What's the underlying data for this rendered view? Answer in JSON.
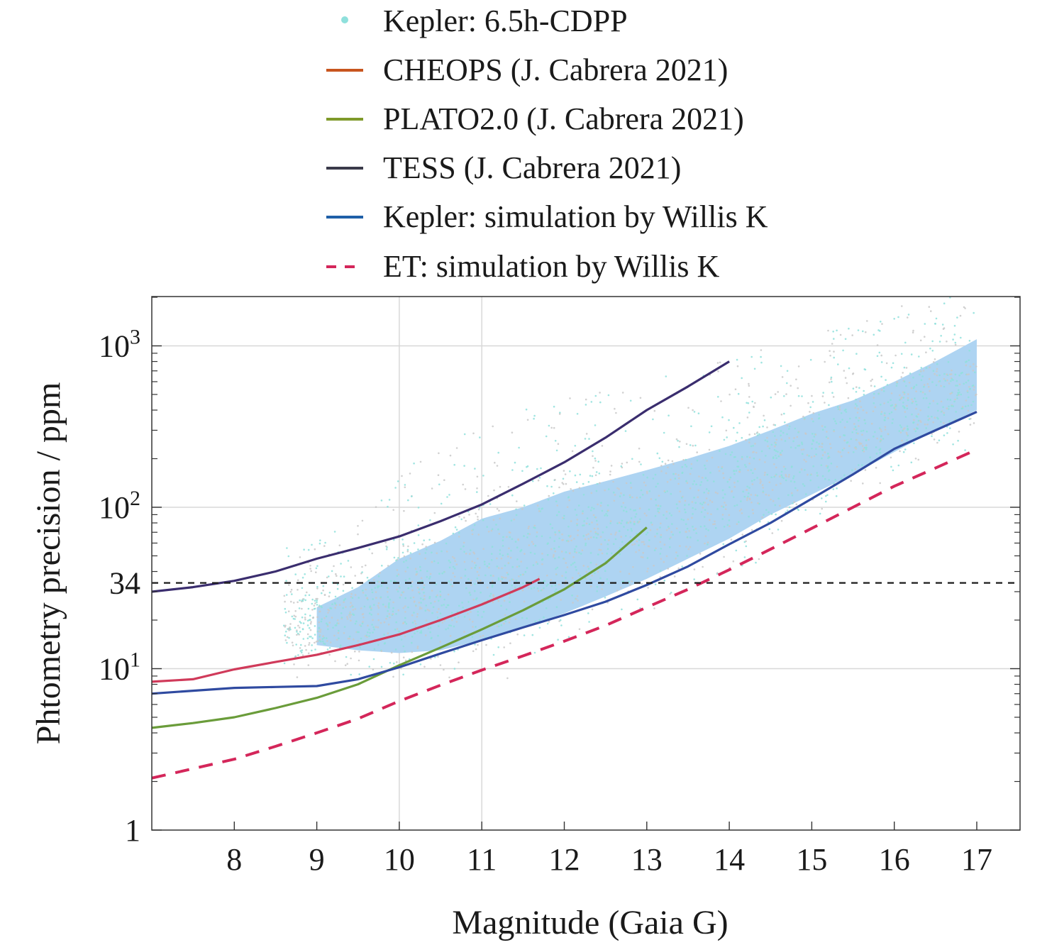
{
  "chart_data": {
    "type": "line",
    "title": "",
    "xlabel": "Magnitude (Gaia G)",
    "ylabel": "Phtometry precision / ppm",
    "xlim": [
      7,
      17.5
    ],
    "ylim": [
      1,
      2000
    ],
    "yscale": "log",
    "grid": true,
    "legend_position": "top",
    "x_ticks": [
      "8",
      "9",
      "10",
      "11",
      "12",
      "13",
      "14",
      "15",
      "16",
      "17"
    ],
    "y_ticks": [
      {
        "value": 1,
        "label": "1",
        "exp": ""
      },
      {
        "value": 10,
        "label": "10",
        "exp": "1"
      },
      {
        "value": 34,
        "label": "34",
        "exp": ""
      },
      {
        "value": 100,
        "label": "10",
        "exp": "2"
      },
      {
        "value": 1000,
        "label": "10",
        "exp": "3"
      }
    ],
    "reference_line": {
      "y": 34,
      "style": "dashed",
      "color": "#1a1a1a"
    },
    "scatter": {
      "name": "Kepler: 6.5h-CDPP",
      "color": "#8fe0dc",
      "band_color": "#aed4f2",
      "band": {
        "x": [
          9.0,
          9.5,
          10.0,
          10.5,
          11.0,
          11.5,
          12.0,
          12.5,
          13.0,
          13.5,
          14.0,
          14.5,
          15.0,
          15.5,
          16.0,
          16.5,
          17.0
        ],
        "lower": [
          14,
          13,
          12.5,
          13,
          15,
          18,
          22,
          28,
          36,
          48,
          64,
          90,
          120,
          160,
          220,
          300,
          400
        ],
        "upper": [
          24,
          32,
          48,
          62,
          85,
          100,
          125,
          145,
          170,
          200,
          240,
          300,
          380,
          460,
          600,
          800,
          1100
        ]
      }
    },
    "series": [
      {
        "name": "CHEOPS (J. Cabrera 2021)",
        "legend_color": "#c8551f",
        "color": "#d03a5a",
        "dash": false,
        "x": [
          7.0,
          7.5,
          8.0,
          8.5,
          9.0,
          9.5,
          10.0,
          10.5,
          11.0,
          11.5,
          11.7
        ],
        "y": [
          8.3,
          8.6,
          9.9,
          11.0,
          12.2,
          14.0,
          16.3,
          20.0,
          25.0,
          32.0,
          36.0
        ]
      },
      {
        "name": "PLATO2.0 (J. Cabrera 2021)",
        "legend_color": "#7f9a2a",
        "color": "#6a9c3a",
        "dash": false,
        "x": [
          7.0,
          7.5,
          8.0,
          8.5,
          9.0,
          9.5,
          10.0,
          10.5,
          11.0,
          11.5,
          12.0,
          12.5,
          13.0
        ],
        "y": [
          4.3,
          4.6,
          5.0,
          5.7,
          6.6,
          8.0,
          10.5,
          13.5,
          17.5,
          23.0,
          31.0,
          45.0,
          75.0
        ]
      },
      {
        "name": "TESS (J. Cabrera 2021)",
        "legend_color": "#3a3a4a",
        "color": "#3a2d6e",
        "dash": false,
        "x": [
          7.0,
          7.5,
          8.0,
          8.5,
          9.0,
          9.5,
          10.0,
          10.5,
          11.0,
          11.5,
          12.0,
          12.5,
          13.0,
          13.5,
          14.0
        ],
        "y": [
          30.0,
          32.0,
          35.0,
          40.0,
          48.0,
          56.0,
          66.0,
          82.0,
          104.0,
          140.0,
          190.0,
          270.0,
          400.0,
          560.0,
          800.0
        ]
      },
      {
        "name": "Kepler: simulation by Willis K",
        "legend_color": "#1f5fa8",
        "color": "#2f4aa0",
        "dash": false,
        "x": [
          7.0,
          7.5,
          8.0,
          8.5,
          9.0,
          9.5,
          10.0,
          10.5,
          11.0,
          11.5,
          12.0,
          12.5,
          13.0,
          13.5,
          14.0,
          14.5,
          15.0,
          15.5,
          16.0,
          16.5,
          17.0
        ],
        "y": [
          7.0,
          7.3,
          7.6,
          7.7,
          7.8,
          8.6,
          10.2,
          12.4,
          15.0,
          18.0,
          21.5,
          26.0,
          33.0,
          43.0,
          59.0,
          80.0,
          113.0,
          160.0,
          230.0,
          300.0,
          390.0
        ]
      },
      {
        "name": "ET: simulation by Willis K",
        "legend_color": "#d4265a",
        "color": "#d4265a",
        "dash": true,
        "x": [
          7.0,
          7.5,
          8.0,
          8.5,
          9.0,
          9.5,
          10.0,
          10.5,
          11.0,
          11.5,
          12.0,
          12.5,
          13.0,
          13.5,
          14.0,
          14.5,
          15.0,
          15.5,
          16.0,
          16.5,
          17.0
        ],
        "y": [
          2.1,
          2.4,
          2.75,
          3.3,
          4.0,
          4.9,
          6.3,
          7.9,
          9.8,
          12.0,
          14.8,
          18.5,
          24.0,
          31.0,
          41.0,
          55.0,
          74.0,
          100.0,
          135.0,
          175.0,
          228.0
        ]
      }
    ]
  }
}
